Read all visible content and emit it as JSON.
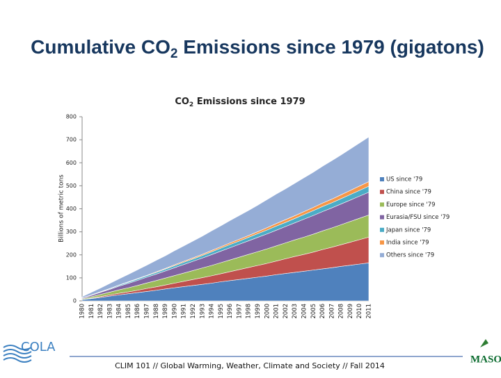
{
  "header": {
    "title_pre": "Cumulative CO",
    "title_sub": "2",
    "title_post": " Emissions since 1979  (gigatons)"
  },
  "chart_data": {
    "type": "stacked-area",
    "title_pre": "CO",
    "title_sub": "2",
    "title_post": " Emissions since 1979",
    "y_label": "Billions of metric tons",
    "categories": [
      "1980",
      "1981",
      "1982",
      "1983",
      "1984",
      "1985",
      "1986",
      "1987",
      "1988",
      "1989",
      "1990",
      "1991",
      "1992",
      "1993",
      "1994",
      "1995",
      "1996",
      "1997",
      "1998",
      "1999",
      "2000",
      "2001",
      "2002",
      "2003",
      "2004",
      "2005",
      "2006",
      "2007",
      "2008",
      "2009",
      "2010",
      "2011"
    ],
    "series": [
      {
        "name": "US since '79",
        "color": "#4f81bd",
        "values": [
          5,
          10,
          15,
          21,
          26,
          31,
          36,
          41,
          46,
          52,
          57,
          62,
          67,
          72,
          77,
          83,
          88,
          93,
          98,
          103,
          108,
          114,
          119,
          124,
          129,
          134,
          139,
          144,
          150,
          155,
          160,
          165
        ]
      },
      {
        "name": "China since '79",
        "color": "#c0504d",
        "values": [
          1,
          2,
          4,
          5,
          7,
          8,
          10,
          13,
          15,
          17,
          20,
          23,
          26,
          29,
          32,
          35,
          39,
          43,
          47,
          51,
          55,
          59,
          64,
          69,
          73,
          78,
          84,
          89,
          94,
          100,
          106,
          112
        ]
      },
      {
        "name": "Europe since '79",
        "color": "#9bbb59",
        "values": [
          3,
          6,
          9,
          12,
          15,
          18,
          21,
          24,
          27,
          30,
          33,
          36,
          39,
          42,
          45,
          48,
          51,
          54,
          57,
          60,
          63,
          66,
          69,
          72,
          75,
          78,
          81,
          84,
          87,
          90,
          93,
          96
        ]
      },
      {
        "name": "Eurasia/FSU since '79",
        "color": "#8064a2",
        "values": [
          3,
          6,
          9,
          12,
          16,
          19,
          22,
          25,
          28,
          31,
          34,
          37,
          40,
          43,
          47,
          50,
          53,
          56,
          59,
          62,
          65,
          68,
          71,
          74,
          78,
          81,
          84,
          87,
          90,
          93,
          96,
          99
        ]
      },
      {
        "name": "Japan since '79",
        "color": "#4bacc6",
        "values": [
          1,
          2,
          2,
          3,
          4,
          5,
          6,
          6,
          7,
          8,
          9,
          10,
          10,
          11,
          12,
          13,
          14,
          14,
          15,
          16,
          17,
          18,
          18,
          19,
          20,
          21,
          22,
          22,
          23,
          24,
          25,
          26
        ]
      },
      {
        "name": "India since '79",
        "color": "#f79646",
        "values": [
          0,
          0,
          1,
          1,
          1,
          2,
          2,
          2,
          3,
          3,
          4,
          4,
          5,
          5,
          6,
          6,
          7,
          8,
          8,
          9,
          10,
          11,
          12,
          12,
          13,
          14,
          15,
          16,
          17,
          18,
          19,
          20
        ]
      },
      {
        "name": "Others since '79",
        "color": "#95add6",
        "values": [
          5,
          11,
          16,
          22,
          27,
          32,
          38,
          44,
          50,
          55,
          61,
          67,
          73,
          79,
          85,
          91,
          97,
          103,
          109,
          115,
          122,
          128,
          134,
          141,
          147,
          153,
          160,
          167,
          173,
          180,
          187,
          194
        ]
      }
    ],
    "ylim": [
      0,
      800
    ],
    "yticks": [
      0,
      100,
      200,
      300,
      400,
      500,
      600,
      700,
      800
    ]
  },
  "footer": {
    "text": "CLIM 101 // Global Warming, Weather, Climate and Society // Fall 2014",
    "left_logo": "COLA",
    "right_logo": "MASON"
  }
}
